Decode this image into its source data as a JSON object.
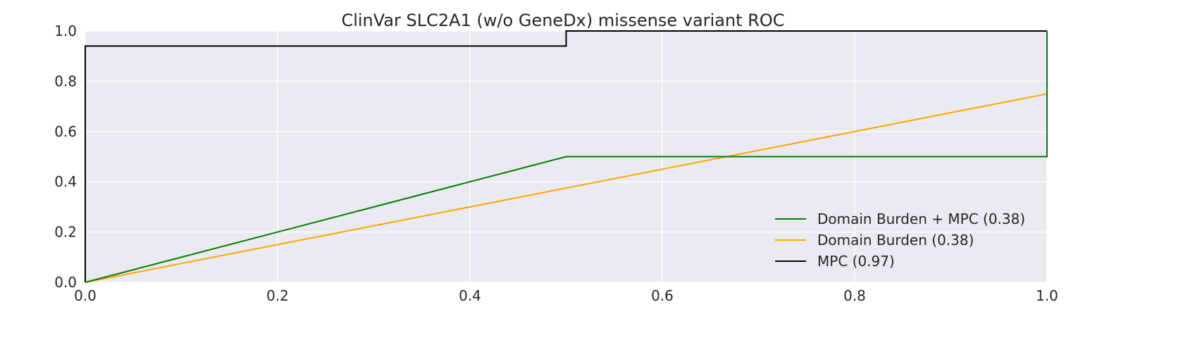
{
  "chart_data": {
    "type": "line",
    "title": "ClinVar SLC2A1 (w/o GeneDx) missense variant ROC",
    "xlabel": "",
    "ylabel": "",
    "xlim": [
      0.0,
      1.0
    ],
    "ylim": [
      0.0,
      1.0
    ],
    "xticks": [
      "0.0",
      "0.2",
      "0.4",
      "0.6",
      "0.8",
      "1.0"
    ],
    "yticks": [
      "0.0",
      "0.2",
      "0.4",
      "0.6",
      "0.8",
      "1.0"
    ],
    "grid": true,
    "legend_position": "lower-right",
    "background_color": "#eaeaf2",
    "grid_color": "#ffffff",
    "series": [
      {
        "name": "Domain Burden + MPC (0.38)",
        "color": "#008000",
        "x": [
          0.0,
          0.5,
          1.0,
          1.0,
          1.0
        ],
        "y": [
          0.0,
          0.5,
          0.5,
          0.75,
          1.0
        ]
      },
      {
        "name": "Domain Burden (0.38)",
        "color": "#ffa500",
        "x": [
          0.0,
          1.0,
          1.0
        ],
        "y": [
          0.0,
          0.75,
          1.0
        ]
      },
      {
        "name": "MPC (0.97)",
        "color": "#000000",
        "x": [
          0.0,
          0.0,
          0.0,
          0.5,
          0.5,
          1.0
        ],
        "y": [
          0.0,
          0.06,
          0.94,
          0.94,
          1.0,
          1.0
        ]
      }
    ]
  }
}
